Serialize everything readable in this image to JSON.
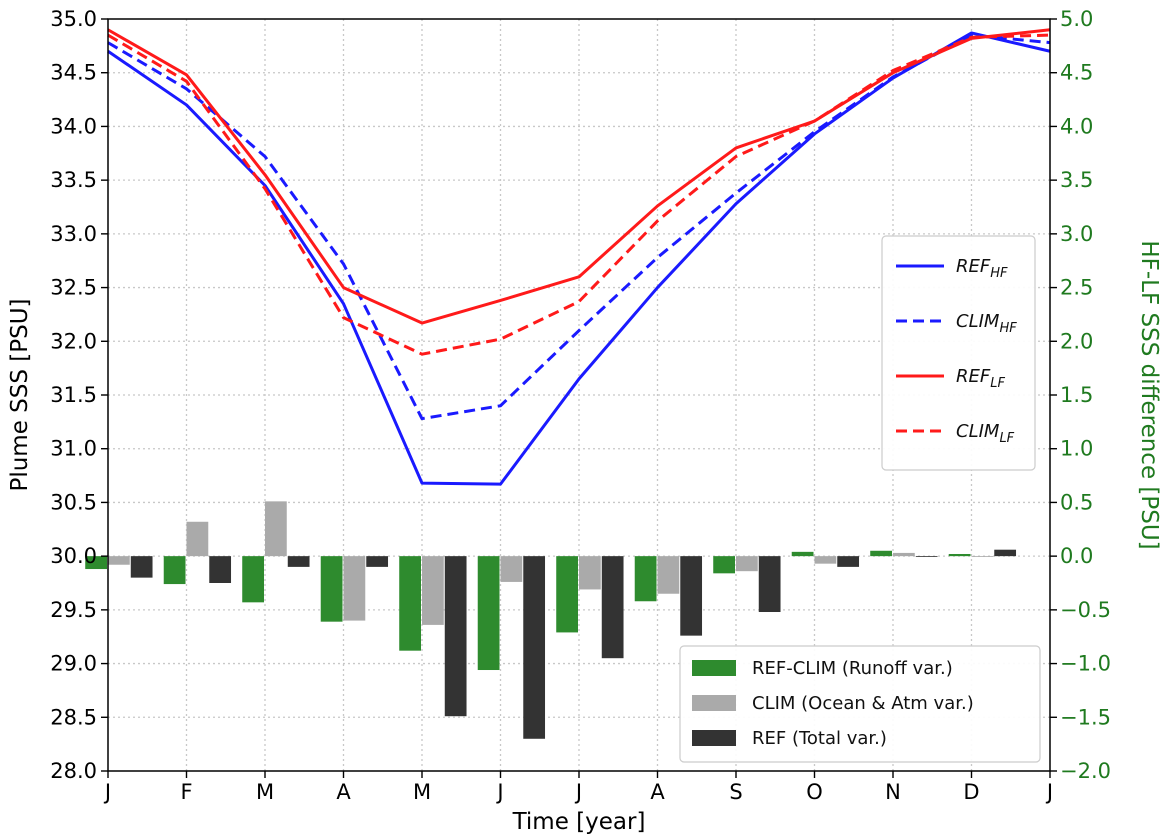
{
  "chart_data": {
    "type": "line+bar",
    "xlabel": "Time [year]",
    "ylabel_left": "Plume SSS [PSU]",
    "ylabel_right": "HF-LF SSS difference [PSU]",
    "ylim_left": [
      28.0,
      35.0
    ],
    "ylim_right": [
      -2.0,
      5.0
    ],
    "grid": true,
    "x_ticks": [
      "J",
      "F",
      "M",
      "A",
      "M",
      "J",
      "J",
      "A",
      "S",
      "O",
      "N",
      "D",
      "J"
    ],
    "y_ticks_left": [
      "28.0",
      "28.5",
      "29.0",
      "29.5",
      "30.0",
      "30.5",
      "31.0",
      "31.5",
      "32.0",
      "32.5",
      "33.0",
      "33.5",
      "34.0",
      "34.5",
      "35.0"
    ],
    "y_ticks_right": [
      "−2.0",
      "−1.5",
      "−1.0",
      "−0.5",
      "0.0",
      "0.5",
      "1.0",
      "1.5",
      "2.0",
      "2.5",
      "3.0",
      "3.5",
      "4.0",
      "4.5",
      "5.0"
    ],
    "line_series": [
      {
        "base": "REF",
        "sub": "HF",
        "color": "#1a1aff",
        "dash": false,
        "values": [
          34.7,
          34.2,
          33.45,
          32.35,
          30.68,
          30.67,
          31.65,
          32.5,
          33.28,
          33.93,
          34.45,
          34.87,
          34.7
        ]
      },
      {
        "base": "CLIM",
        "sub": "HF",
        "color": "#1a1aff",
        "dash": true,
        "values": [
          34.78,
          34.35,
          33.72,
          32.72,
          31.28,
          31.4,
          32.1,
          32.78,
          33.38,
          33.95,
          34.46,
          34.85,
          34.78
        ]
      },
      {
        "base": "REF",
        "sub": "LF",
        "color": "#ff1a1a",
        "dash": false,
        "values": [
          34.9,
          34.48,
          33.55,
          32.5,
          32.17,
          32.38,
          32.6,
          33.26,
          33.8,
          34.05,
          34.5,
          34.82,
          34.9
        ]
      },
      {
        "base": "CLIM",
        "sub": "LF",
        "color": "#ff1a1a",
        "dash": true,
        "values": [
          34.85,
          34.42,
          33.42,
          32.22,
          31.88,
          32.02,
          32.37,
          33.12,
          33.72,
          34.05,
          34.52,
          34.83,
          34.85
        ]
      }
    ],
    "bar_series": [
      {
        "name": "REF-CLIM (Runoff var.)",
        "color": "#2e8b2e",
        "values": [
          -0.12,
          -0.26,
          -0.43,
          -0.61,
          -0.88,
          -1.06,
          -0.71,
          -0.42,
          -0.16,
          0.04,
          0.05,
          0.02
        ]
      },
      {
        "name": "CLIM (Ocean & Atm var.)",
        "color": "#aaaaaa",
        "values": [
          -0.08,
          0.32,
          0.51,
          -0.6,
          -0.64,
          -0.24,
          -0.31,
          -0.35,
          -0.14,
          -0.07,
          0.03,
          0.0
        ]
      },
      {
        "name": "REF (Total var.)",
        "color": "#333333",
        "values": [
          -0.2,
          -0.25,
          -0.1,
          -0.1,
          -1.49,
          -1.7,
          -0.95,
          -0.74,
          -0.52,
          -0.1,
          0.0,
          0.06
        ]
      }
    ],
    "bar_months": [
      "J",
      "F",
      "M",
      "A",
      "M",
      "J",
      "J",
      "A",
      "S",
      "O",
      "N",
      "D"
    ],
    "legend_lines_position": "center-right",
    "legend_bars_position": "lower-right",
    "right_axis_color": "#1f7a1f"
  }
}
